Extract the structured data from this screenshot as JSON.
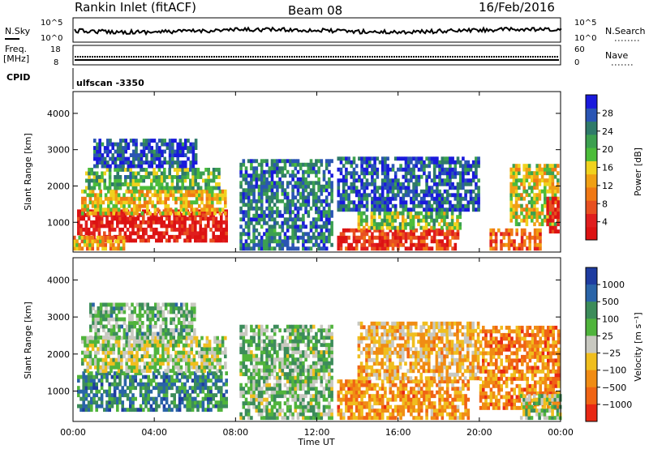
{
  "header": {
    "station": "Rankin Inlet (fitACF)",
    "beam": "Beam 08",
    "date": "16/Feb/2016"
  },
  "top_panels": {
    "nsky_label": "N.Sky",
    "nsearch_label": "N.Search",
    "nsky_ticks": [
      "10^5",
      "10^0"
    ],
    "nsearch_ticks": [
      "10^5",
      "10^0"
    ],
    "freq_label_1": "Freq.",
    "freq_label_2": "[MHz]",
    "freq_ticks": [
      "18",
      "8"
    ],
    "nave_label": "Nave",
    "nave_ticks": [
      "60",
      "0"
    ],
    "cpid_label": "CPID",
    "cpid_value": "ulfscan -3350"
  },
  "chart_data": [
    {
      "type": "heatmap",
      "title": "",
      "quantity": "Power",
      "ylabel": "Slant Range [km]",
      "xlabel": "",
      "ylim": [
        180,
        4600
      ],
      "yticks": [
        "1000",
        "2000",
        "3000",
        "4000"
      ],
      "colorbar_label": "Power [dB]",
      "colorbar_ticks": [
        "4",
        "8",
        "12",
        "16",
        "20",
        "24",
        "28"
      ],
      "colorbar_colors": [
        "#1a1adc",
        "#2a55b4",
        "#2f7a6a",
        "#3ca050",
        "#4cbd3a",
        "#f0d21e",
        "#f0a014",
        "#f07814",
        "#e85020",
        "#e01e1e",
        "#dc1212"
      ],
      "regions": [
        {
          "x0": 0.2,
          "x1": 7.6,
          "y0": 450,
          "y1": 1300,
          "level": 0.92
        },
        {
          "x0": 0.4,
          "x1": 7.5,
          "y0": 1200,
          "y1": 1900,
          "level": 0.55
        },
        {
          "x0": 0.6,
          "x1": 7.2,
          "y0": 1900,
          "y1": 2500,
          "level": 0.35
        },
        {
          "x0": 1.0,
          "x1": 6.0,
          "y0": 2500,
          "y1": 3300,
          "level": 0.12
        },
        {
          "x0": 0.0,
          "x1": 2.5,
          "y0": 230,
          "y1": 600,
          "level": 0.6
        },
        {
          "x0": 8.2,
          "x1": 12.8,
          "y0": 230,
          "y1": 2700,
          "level": 0.2
        },
        {
          "x0": 13.0,
          "x1": 19.0,
          "y0": 230,
          "y1": 800,
          "level": 0.85
        },
        {
          "x0": 14.0,
          "x1": 19.0,
          "y0": 800,
          "y1": 1300,
          "level": 0.4
        },
        {
          "x0": 13.0,
          "x1": 20.0,
          "y0": 1300,
          "y1": 2800,
          "level": 0.15
        },
        {
          "x0": 20.5,
          "x1": 23.0,
          "y0": 230,
          "y1": 800,
          "level": 0.75
        },
        {
          "x0": 21.5,
          "x1": 24.0,
          "y0": 900,
          "y1": 2600,
          "level": 0.5
        },
        {
          "x0": 23.3,
          "x1": 24.0,
          "y0": 700,
          "y1": 1700,
          "level": 0.9
        }
      ]
    },
    {
      "type": "heatmap",
      "title": "",
      "quantity": "Velocity",
      "ylabel": "Slant Range [km]",
      "xlabel": "Time UT",
      "ylim": [
        180,
        4600
      ],
      "xlim": [
        0,
        24
      ],
      "xticks": [
        "00:00",
        "04:00",
        "08:00",
        "12:00",
        "16:00",
        "20:00",
        "00:00"
      ],
      "yticks": [
        "1000",
        "2000",
        "3000",
        "4000"
      ],
      "colorbar_label": "Velocity [m s⁻¹]",
      "colorbar_ticks": [
        "1000",
        "500",
        "100",
        "25",
        "−25",
        "−100",
        "−500",
        "−1000"
      ],
      "colorbar_colors": [
        "#1e3ca0",
        "#2a64a8",
        "#3c8c5a",
        "#50b43c",
        "#c8c8c0",
        "#f0be1e",
        "#f08c14",
        "#f06414",
        "#e82814"
      ],
      "regions": [
        {
          "x0": 0.2,
          "x1": 7.6,
          "y0": 450,
          "y1": 1500,
          "level": 0.25
        },
        {
          "x0": 0.4,
          "x1": 7.5,
          "y0": 1500,
          "y1": 2400,
          "level": 0.48
        },
        {
          "x0": 0.8,
          "x1": 6.0,
          "y0": 2400,
          "y1": 3300,
          "level": 0.38
        },
        {
          "x0": 8.2,
          "x1": 12.8,
          "y0": 230,
          "y1": 2700,
          "level": 0.4
        },
        {
          "x0": 13.0,
          "x1": 19.5,
          "y0": 230,
          "y1": 1300,
          "level": 0.72
        },
        {
          "x0": 14.0,
          "x1": 20.0,
          "y0": 1300,
          "y1": 2800,
          "level": 0.62
        },
        {
          "x0": 20.0,
          "x1": 24.0,
          "y0": 500,
          "y1": 2700,
          "level": 0.75
        },
        {
          "x0": 22.0,
          "x1": 24.0,
          "y0": 230,
          "y1": 900,
          "level": 0.45
        }
      ]
    }
  ]
}
